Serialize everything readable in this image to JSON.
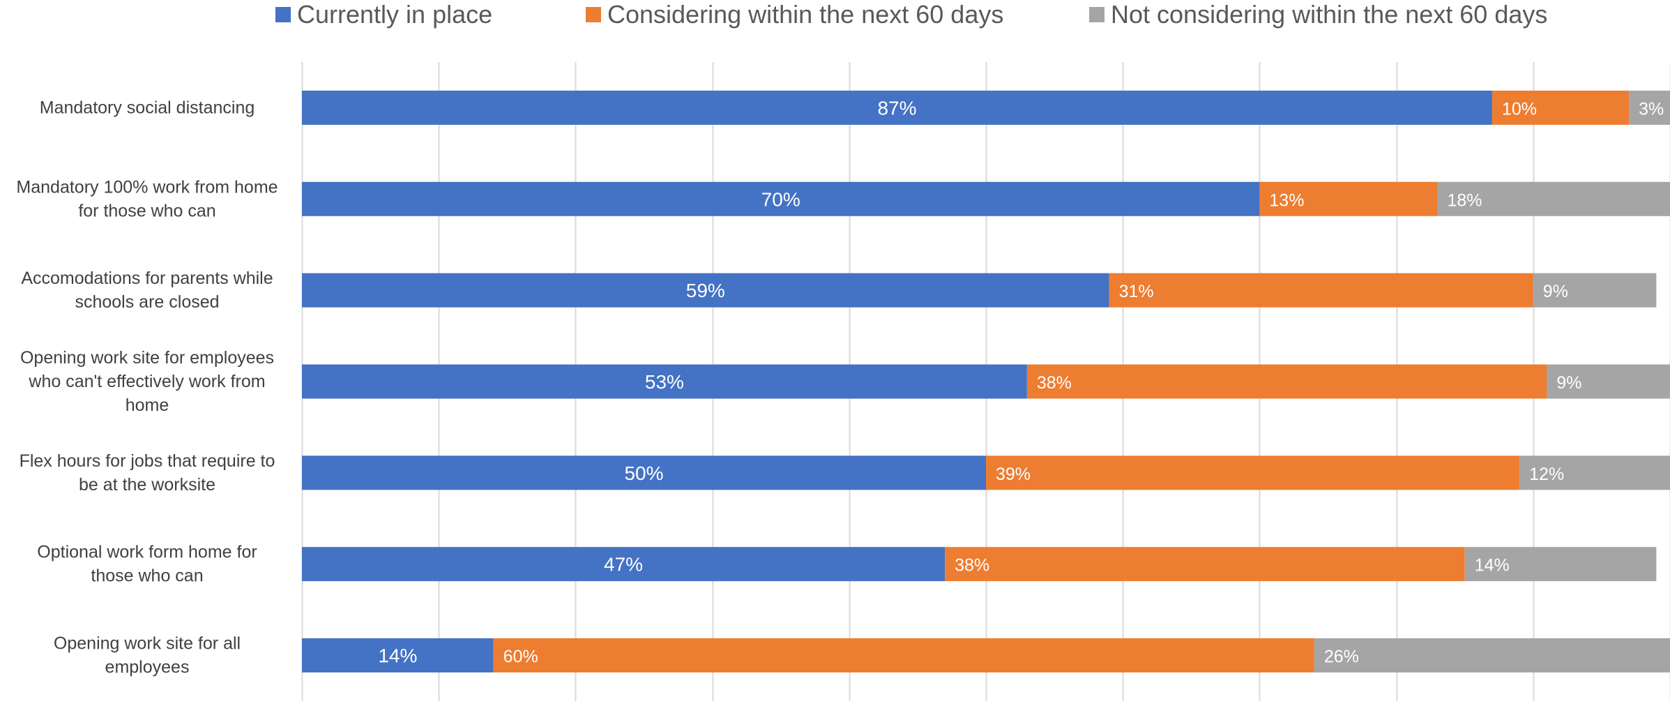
{
  "chart_data": {
    "type": "bar",
    "orientation": "horizontal",
    "stacked": true,
    "stack_mode": "percent",
    "title": "",
    "xlabel": "",
    "ylabel": "",
    "xlim": [
      0,
      100
    ],
    "grid": true,
    "legend_position": "top",
    "categories": [
      "Mandatory social distancing",
      "Mandatory 100% work from home for those who can",
      "Accomodations for parents while schools are closed",
      "Opening work site for employees who can't effectively work from home",
      "Flex hours for jobs that require to be at the worksite",
      "Optional work form home for those who can",
      "Opening work site for all employees"
    ],
    "category_lines": [
      [
        "Mandatory social distancing"
      ],
      [
        "Mandatory 100% work from home",
        "for those who can"
      ],
      [
        "Accomodations for parents while",
        "schools are closed"
      ],
      [
        "Opening work site for employees",
        "who can't effectively work from",
        "home"
      ],
      [
        "Flex hours for jobs that require to",
        "be at the worksite"
      ],
      [
        "Optional work form home for",
        "those who can"
      ],
      [
        "Opening work site for all",
        "employees"
      ]
    ],
    "series": [
      {
        "name": "Currently in place",
        "color": "#4472C4",
        "values": [
          87,
          70,
          59,
          53,
          50,
          47,
          14
        ],
        "labels": [
          "87%",
          "70%",
          "59%",
          "53%",
          "50%",
          "47%",
          "14%"
        ]
      },
      {
        "name": "Considering within the next 60 days",
        "color": "#ED7D31",
        "values": [
          10,
          13,
          31,
          38,
          39,
          38,
          60
        ],
        "labels": [
          "10%",
          "13%",
          "31%",
          "38%",
          "39%",
          "38%",
          "60%"
        ]
      },
      {
        "name": "Not considering within the next 60 days",
        "color": "#A5A5A5",
        "values": [
          3,
          18,
          9,
          9,
          12,
          14,
          26
        ],
        "labels": [
          "3%",
          "18%",
          "9%",
          "9%",
          "12%",
          "14%",
          "26%"
        ]
      }
    ]
  }
}
